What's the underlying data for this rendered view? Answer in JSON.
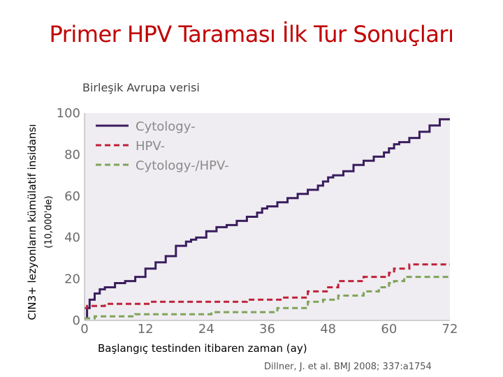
{
  "slide": {
    "title": "Primer HPV Taraması İlk Tur Sonuçları",
    "subtitle": "Birleşik Avrupa verisi",
    "citation": "Dillner, J. et al. BMJ 2008; 337:a1754"
  },
  "chart_data": {
    "type": "line",
    "step": true,
    "ylabel": "CIN3+ lezyonların kümülatif insidansı",
    "ylabel_unit": "(10,000'de)",
    "xlabel": "Başlangıç testinden itibaren zaman (ay)",
    "xlim": [
      0,
      72
    ],
    "ylim": [
      0,
      100
    ],
    "xticks": [
      0,
      12,
      24,
      36,
      48,
      60,
      72
    ],
    "yticks": [
      0,
      20,
      40,
      60,
      80,
      100
    ],
    "grid": false,
    "plot_background": "#efedf1",
    "legend_position": "top-left",
    "series": [
      {
        "name": "Cytology-",
        "color": "#3a1d5e",
        "style": "solid",
        "x": [
          0,
          0.5,
          1,
          2,
          3,
          4,
          6,
          8,
          10,
          12,
          14,
          16,
          18,
          20,
          21,
          22,
          24,
          26,
          28,
          30,
          32,
          34,
          35,
          36,
          38,
          40,
          42,
          44,
          46,
          47,
          48,
          49,
          51,
          53,
          55,
          57,
          59,
          60,
          61,
          62,
          64,
          66,
          68,
          70,
          72
        ],
        "y": [
          1,
          6,
          10,
          13,
          15,
          16,
          18,
          19,
          21,
          25,
          28,
          31,
          36,
          38,
          39,
          40,
          43,
          45,
          46,
          48,
          50,
          52,
          54,
          55,
          57,
          59,
          61,
          63,
          65,
          67,
          69,
          70,
          72,
          75,
          77,
          79,
          81,
          83,
          85,
          86,
          88,
          91,
          94,
          97,
          97
        ]
      },
      {
        "name": "HPV-",
        "color": "#c0213a",
        "style": "dashed",
        "x": [
          0,
          0.5,
          4,
          13,
          32,
          39,
          44,
          48,
          50,
          55,
          60,
          61,
          64,
          72
        ],
        "y": [
          6,
          7,
          8,
          9,
          10,
          11,
          14,
          16,
          19,
          21,
          23,
          25,
          27,
          27
        ]
      },
      {
        "name": "Cytology-/HPV-",
        "color": "#7fa35a",
        "style": "dashed",
        "x": [
          0,
          2,
          10,
          25,
          38,
          44,
          47,
          50,
          55,
          58,
          60,
          61,
          63,
          72
        ],
        "y": [
          1,
          2,
          3,
          4,
          6,
          9,
          10,
          12,
          14,
          16,
          18,
          19,
          21,
          21
        ]
      }
    ]
  }
}
